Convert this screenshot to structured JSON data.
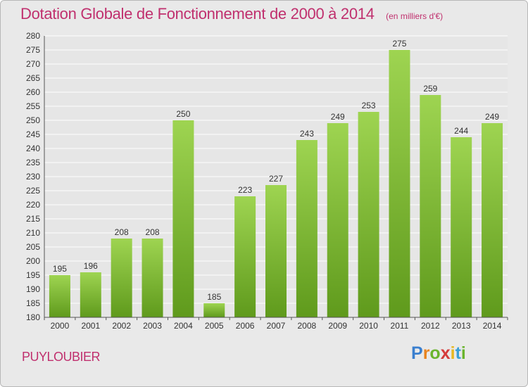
{
  "header": {
    "title": "Dotation Globale de Fonctionnement de 2000 à 2014",
    "subtitle": "(en milliers d'€)"
  },
  "footer": {
    "commune": "PUYLOUBIER",
    "logo": [
      {
        "ch": "P",
        "color": "#3a7fcf"
      },
      {
        "ch": "r",
        "color": "#e8831f"
      },
      {
        "ch": "o",
        "color": "#6ab42d"
      },
      {
        "ch": "x",
        "color": "#d53a3a"
      },
      {
        "ch": "i",
        "color": "#e8b81f"
      },
      {
        "ch": "t",
        "color": "#3a9fd6"
      },
      {
        "ch": "i",
        "color": "#6ab42d"
      }
    ]
  },
  "colors": {
    "bar_top": "#9ed451",
    "bar_bottom": "#5f9a1c",
    "accent": "#c0306e",
    "grid": "#ffffff",
    "plot_bg": "#e6e6e6"
  },
  "chart_data": {
    "type": "bar",
    "title": "Dotation Globale de Fonctionnement de 2000 à 2014",
    "subtitle": "(en milliers d'€)",
    "categories": [
      "2000",
      "2001",
      "2002",
      "2003",
      "2004",
      "2005",
      "2006",
      "2007",
      "2008",
      "2009",
      "2010",
      "2011",
      "2012",
      "2013",
      "2014"
    ],
    "values": [
      195,
      196,
      208,
      208,
      250,
      185,
      223,
      227,
      243,
      249,
      253,
      275,
      259,
      244,
      249
    ],
    "ylim": [
      180,
      280
    ],
    "ytick_step": 5,
    "grid": true,
    "xlabel": "",
    "ylabel": ""
  }
}
